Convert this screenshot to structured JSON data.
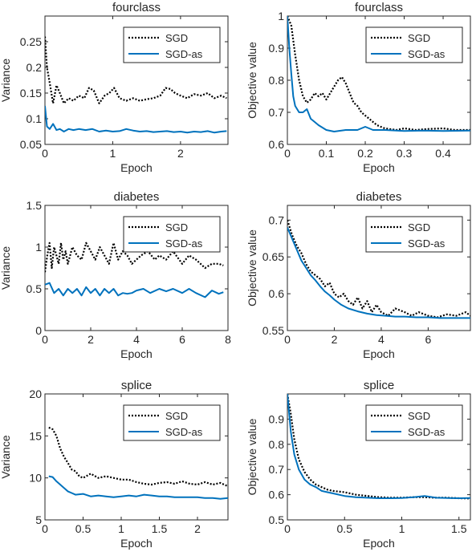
{
  "chart_data": [
    {
      "type": "line",
      "title": "fourclass",
      "xlabel": "Epoch",
      "ylabel": "Variance",
      "xlim": [
        0,
        2.7
      ],
      "ylim": [
        0.05,
        0.3
      ],
      "xticks": [
        "0",
        "1",
        "2"
      ],
      "yticks": [
        "0.05",
        "0.1",
        "0.15",
        "0.2",
        "0.25"
      ],
      "legend_position": "top-right",
      "grid": false,
      "series": [
        {
          "name": "SGD",
          "color": "#000000",
          "style": "dotted",
          "x": [
            0,
            0.03,
            0.07,
            0.12,
            0.17,
            0.22,
            0.28,
            0.35,
            0.42,
            0.5,
            0.58,
            0.65,
            0.72,
            0.8,
            0.88,
            0.95,
            1.02,
            1.1,
            1.2,
            1.3,
            1.4,
            1.5,
            1.6,
            1.7,
            1.78,
            1.85,
            1.92,
            2.0,
            2.1,
            2.2,
            2.3,
            2.4,
            2.5,
            2.6,
            2.68
          ],
          "values": [
            0.26,
            0.2,
            0.17,
            0.13,
            0.165,
            0.15,
            0.13,
            0.14,
            0.135,
            0.145,
            0.14,
            0.16,
            0.155,
            0.13,
            0.145,
            0.15,
            0.16,
            0.14,
            0.135,
            0.14,
            0.135,
            0.138,
            0.14,
            0.145,
            0.16,
            0.158,
            0.15,
            0.145,
            0.14,
            0.148,
            0.145,
            0.15,
            0.14,
            0.145,
            0.14
          ]
        },
        {
          "name": "SGD-as",
          "color": "#0072BD",
          "style": "solid",
          "x": [
            0,
            0.03,
            0.07,
            0.12,
            0.17,
            0.22,
            0.28,
            0.35,
            0.42,
            0.5,
            0.6,
            0.7,
            0.8,
            0.9,
            1.0,
            1.1,
            1.2,
            1.3,
            1.4,
            1.5,
            1.6,
            1.7,
            1.8,
            1.9,
            2.0,
            2.1,
            2.2,
            2.3,
            2.4,
            2.5,
            2.6,
            2.68
          ],
          "values": [
            0.125,
            0.085,
            0.08,
            0.09,
            0.078,
            0.08,
            0.075,
            0.08,
            0.078,
            0.08,
            0.078,
            0.08,
            0.075,
            0.077,
            0.075,
            0.076,
            0.08,
            0.077,
            0.075,
            0.076,
            0.074,
            0.075,
            0.076,
            0.074,
            0.075,
            0.073,
            0.075,
            0.074,
            0.076,
            0.073,
            0.075,
            0.076
          ]
        }
      ]
    },
    {
      "type": "line",
      "title": "fourclass",
      "xlabel": "Epoch",
      "ylabel": "Objective value",
      "xlim": [
        0,
        0.47
      ],
      "ylim": [
        0.6,
        1.0
      ],
      "xticks": [
        "0",
        "0.1",
        "0.2",
        "0.3",
        "0.4"
      ],
      "yticks": [
        "0.6",
        "0.7",
        "0.8",
        "0.9",
        "1"
      ],
      "legend_position": "top-right",
      "grid": false,
      "series": [
        {
          "name": "SGD",
          "color": "#000000",
          "style": "dotted",
          "x": [
            0,
            0.01,
            0.02,
            0.03,
            0.04,
            0.05,
            0.06,
            0.07,
            0.08,
            0.09,
            0.1,
            0.11,
            0.12,
            0.13,
            0.14,
            0.15,
            0.16,
            0.17,
            0.18,
            0.19,
            0.2,
            0.21,
            0.22,
            0.23,
            0.25,
            0.28,
            0.3,
            0.33,
            0.36,
            0.4,
            0.43,
            0.47
          ],
          "values": [
            1.0,
            0.97,
            0.88,
            0.8,
            0.75,
            0.73,
            0.74,
            0.76,
            0.75,
            0.76,
            0.74,
            0.76,
            0.78,
            0.8,
            0.81,
            0.79,
            0.76,
            0.73,
            0.72,
            0.7,
            0.69,
            0.68,
            0.67,
            0.66,
            0.65,
            0.645,
            0.65,
            0.645,
            0.648,
            0.65,
            0.645,
            0.645
          ]
        },
        {
          "name": "SGD-as",
          "color": "#0072BD",
          "style": "solid",
          "x": [
            0,
            0.005,
            0.01,
            0.015,
            0.02,
            0.03,
            0.04,
            0.05,
            0.06,
            0.07,
            0.08,
            0.1,
            0.12,
            0.15,
            0.18,
            0.2,
            0.22,
            0.25,
            0.3,
            0.35,
            0.4,
            0.47
          ],
          "values": [
            1.0,
            0.9,
            0.82,
            0.75,
            0.72,
            0.7,
            0.7,
            0.71,
            0.68,
            0.67,
            0.66,
            0.645,
            0.64,
            0.645,
            0.645,
            0.655,
            0.645,
            0.645,
            0.642,
            0.643,
            0.642,
            0.643
          ]
        }
      ]
    },
    {
      "type": "line",
      "title": "diabetes",
      "xlabel": "Epoch",
      "ylabel": "Variance",
      "xlim": [
        0,
        8
      ],
      "ylim": [
        0,
        1.5
      ],
      "xticks": [
        "0",
        "2",
        "4",
        "6",
        "8"
      ],
      "yticks": [
        "0",
        "0.5",
        "1",
        "1.5"
      ],
      "legend_position": "top-right",
      "grid": false,
      "series": [
        {
          "name": "SGD",
          "color": "#000000",
          "style": "dotted",
          "x": [
            0,
            0.1,
            0.2,
            0.3,
            0.4,
            0.5,
            0.6,
            0.7,
            0.8,
            0.9,
            1.0,
            1.2,
            1.4,
            1.6,
            1.8,
            2.0,
            2.2,
            2.4,
            2.6,
            2.8,
            3.0,
            3.2,
            3.4,
            3.6,
            3.8,
            4.0,
            4.2,
            4.5,
            4.8,
            5.0,
            5.3,
            5.6,
            6.0,
            6.3,
            6.6,
            7.0,
            7.3,
            7.6,
            7.8
          ],
          "values": [
            0.7,
            0.9,
            1.05,
            0.75,
            1.0,
            0.9,
            0.8,
            1.05,
            0.85,
            0.95,
            0.8,
            1.0,
            0.9,
            0.85,
            1.05,
            0.95,
            0.85,
            1.0,
            0.9,
            0.8,
            1.05,
            0.85,
            0.95,
            0.9,
            0.8,
            0.85,
            0.9,
            0.95,
            0.85,
            0.9,
            0.85,
            0.95,
            0.8,
            0.9,
            0.85,
            0.75,
            0.8,
            0.8,
            0.78
          ]
        },
        {
          "name": "SGD-as",
          "color": "#0072BD",
          "style": "solid",
          "x": [
            0,
            0.2,
            0.4,
            0.6,
            0.8,
            1.0,
            1.2,
            1.4,
            1.6,
            1.8,
            2.0,
            2.2,
            2.4,
            2.6,
            2.8,
            3.0,
            3.2,
            3.4,
            3.6,
            3.8,
            4.0,
            4.3,
            4.6,
            5.0,
            5.3,
            5.6,
            6.0,
            6.3,
            6.6,
            7.0,
            7.3,
            7.6,
            7.8
          ],
          "values": [
            0.55,
            0.57,
            0.45,
            0.5,
            0.42,
            0.5,
            0.45,
            0.5,
            0.42,
            0.52,
            0.45,
            0.5,
            0.42,
            0.5,
            0.45,
            0.5,
            0.42,
            0.45,
            0.44,
            0.45,
            0.48,
            0.5,
            0.45,
            0.5,
            0.47,
            0.5,
            0.45,
            0.5,
            0.45,
            0.4,
            0.48,
            0.44,
            0.46
          ]
        }
      ]
    },
    {
      "type": "line",
      "title": "diabetes",
      "xlabel": "Epoch",
      "ylabel": "Objective value",
      "xlim": [
        0,
        7.8
      ],
      "ylim": [
        0.55,
        0.72
      ],
      "xticks": [
        "0",
        "2",
        "4",
        "6"
      ],
      "yticks": [
        "0.55",
        "0.6",
        "0.65",
        "0.7"
      ],
      "legend_position": "top-right",
      "grid": false,
      "series": [
        {
          "name": "SGD",
          "color": "#000000",
          "style": "dotted",
          "x": [
            0,
            0.2,
            0.4,
            0.6,
            0.8,
            1.0,
            1.2,
            1.4,
            1.6,
            1.8,
            2.0,
            2.2,
            2.4,
            2.6,
            2.8,
            3.0,
            3.2,
            3.4,
            3.6,
            3.8,
            4.0,
            4.3,
            4.6,
            5.0,
            5.3,
            5.6,
            6.0,
            6.4,
            6.8,
            7.2,
            7.6,
            7.8
          ],
          "values": [
            0.7,
            0.68,
            0.665,
            0.655,
            0.64,
            0.63,
            0.625,
            0.62,
            0.61,
            0.615,
            0.6,
            0.595,
            0.6,
            0.59,
            0.585,
            0.595,
            0.58,
            0.59,
            0.575,
            0.585,
            0.575,
            0.57,
            0.58,
            0.575,
            0.57,
            0.575,
            0.57,
            0.568,
            0.572,
            0.57,
            0.575,
            0.57
          ]
        },
        {
          "name": "SGD-as",
          "color": "#0072BD",
          "style": "solid",
          "x": [
            0,
            0.2,
            0.4,
            0.6,
            0.8,
            1.0,
            1.2,
            1.4,
            1.6,
            1.8,
            2.0,
            2.3,
            2.6,
            3.0,
            3.4,
            3.8,
            4.2,
            4.6,
            5.0,
            5.5,
            6.0,
            6.5,
            7.0,
            7.5,
            7.8
          ],
          "values": [
            0.69,
            0.675,
            0.66,
            0.645,
            0.635,
            0.625,
            0.618,
            0.61,
            0.603,
            0.598,
            0.592,
            0.585,
            0.58,
            0.576,
            0.573,
            0.571,
            0.57,
            0.569,
            0.569,
            0.568,
            0.568,
            0.567,
            0.567,
            0.567,
            0.567
          ]
        }
      ]
    },
    {
      "type": "line",
      "title": "splice",
      "xlabel": "Epoch",
      "ylabel": "Variance",
      "xlim": [
        0,
        2.4
      ],
      "ylim": [
        5,
        20
      ],
      "xticks": [
        "0",
        "0.5",
        "1",
        "1.5",
        "2"
      ],
      "yticks": [
        "5",
        "10",
        "15",
        "20"
      ],
      "legend_position": "top-right",
      "grid": false,
      "series": [
        {
          "name": "SGD",
          "color": "#000000",
          "style": "dotted",
          "x": [
            0.05,
            0.1,
            0.15,
            0.2,
            0.25,
            0.3,
            0.35,
            0.4,
            0.45,
            0.5,
            0.6,
            0.7,
            0.8,
            0.9,
            1.0,
            1.1,
            1.2,
            1.3,
            1.4,
            1.5,
            1.6,
            1.7,
            1.8,
            1.9,
            2.0,
            2.1,
            2.2,
            2.3,
            2.4
          ],
          "values": [
            16.0,
            15.8,
            15.0,
            13.5,
            12.5,
            11.8,
            11.0,
            10.8,
            10.2,
            10.0,
            10.5,
            10.0,
            10.2,
            10.0,
            9.8,
            9.8,
            9.5,
            9.3,
            9.2,
            9.4,
            9.5,
            9.3,
            9.6,
            9.3,
            9.2,
            9.5,
            9.2,
            9.4,
            9.0
          ]
        },
        {
          "name": "SGD-as",
          "color": "#0072BD",
          "style": "solid",
          "x": [
            0.05,
            0.1,
            0.15,
            0.2,
            0.25,
            0.3,
            0.35,
            0.4,
            0.5,
            0.6,
            0.7,
            0.8,
            0.9,
            1.0,
            1.1,
            1.2,
            1.3,
            1.4,
            1.5,
            1.6,
            1.7,
            1.8,
            1.9,
            2.0,
            2.1,
            2.2,
            2.3,
            2.4
          ],
          "values": [
            10.2,
            10.1,
            9.6,
            9.2,
            8.8,
            8.4,
            8.2,
            8.0,
            8.1,
            7.8,
            7.9,
            7.8,
            7.7,
            7.8,
            7.9,
            7.8,
            8.0,
            7.9,
            7.8,
            7.8,
            7.7,
            7.7,
            7.7,
            7.7,
            7.6,
            7.6,
            7.5,
            7.6
          ]
        }
      ]
    },
    {
      "type": "line",
      "title": "splice",
      "xlabel": "Epoch",
      "ylabel": "Objective value",
      "xlim": [
        0,
        1.6
      ],
      "ylim": [
        0.5,
        1.0
      ],
      "xticks": [
        "0",
        "0.5",
        "1",
        "1.5"
      ],
      "yticks": [
        "0.5",
        "0.6",
        "0.7",
        "0.8",
        "0.9"
      ],
      "legend_position": "top-right",
      "grid": false,
      "series": [
        {
          "name": "SGD",
          "color": "#000000",
          "style": "dotted",
          "x": [
            0,
            0.03,
            0.06,
            0.1,
            0.15,
            0.2,
            0.25,
            0.3,
            0.35,
            0.4,
            0.5,
            0.6,
            0.7,
            0.8,
            0.9,
            1.0,
            1.1,
            1.2,
            1.3,
            1.4,
            1.5,
            1.6
          ],
          "values": [
            1.0,
            0.92,
            0.82,
            0.74,
            0.69,
            0.66,
            0.64,
            0.63,
            0.62,
            0.615,
            0.61,
            0.6,
            0.595,
            0.59,
            0.588,
            0.588,
            0.59,
            0.59,
            0.588,
            0.588,
            0.586,
            0.585
          ]
        },
        {
          "name": "SGD-as",
          "color": "#0072BD",
          "style": "solid",
          "x": [
            0,
            0.03,
            0.06,
            0.1,
            0.15,
            0.2,
            0.25,
            0.3,
            0.35,
            0.4,
            0.5,
            0.6,
            0.7,
            0.8,
            0.9,
            1.0,
            1.1,
            1.2,
            1.3,
            1.4,
            1.5,
            1.6
          ],
          "values": [
            1.0,
            0.85,
            0.76,
            0.7,
            0.66,
            0.64,
            0.63,
            0.615,
            0.61,
            0.605,
            0.595,
            0.59,
            0.588,
            0.586,
            0.586,
            0.587,
            0.59,
            0.595,
            0.588,
            0.587,
            0.586,
            0.587
          ]
        }
      ]
    }
  ]
}
